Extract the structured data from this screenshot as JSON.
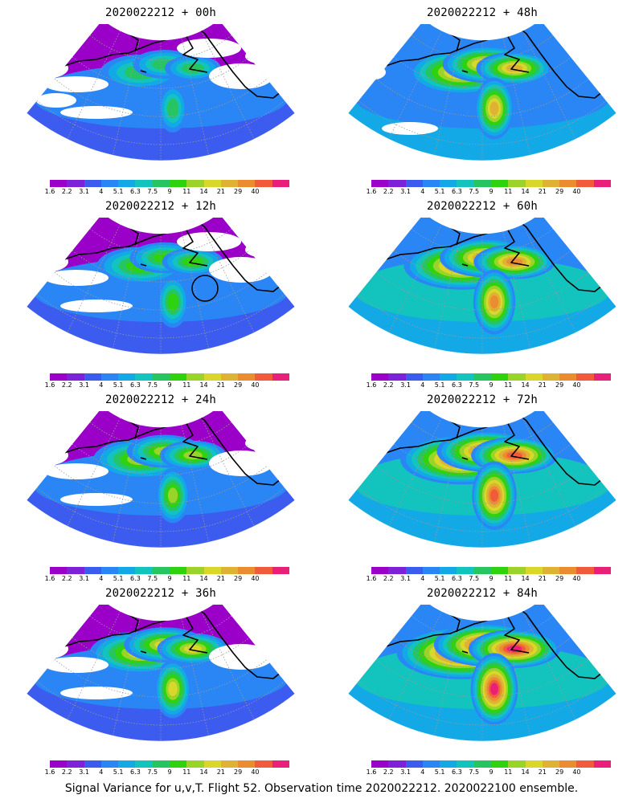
{
  "panels": [
    {
      "title": "2020022212 + 00h",
      "level": 0,
      "circle": false
    },
    {
      "title": "2020022212 + 48h",
      "level": 4,
      "circle": false
    },
    {
      "title": "2020022212 + 12h",
      "level": 1,
      "circle": true
    },
    {
      "title": "2020022212 + 60h",
      "level": 5,
      "circle": false
    },
    {
      "title": "2020022212 + 24h",
      "level": 2,
      "circle": false
    },
    {
      "title": "2020022212 + 72h",
      "level": 6,
      "circle": false
    },
    {
      "title": "2020022212 + 36h",
      "level": 3,
      "circle": false
    },
    {
      "title": "2020022212 + 84h",
      "level": 7,
      "circle": false
    }
  ],
  "colorbar": {
    "labels": [
      "1.6",
      "2.2",
      "3.1",
      "4",
      "5.1",
      "6.3",
      "7.5",
      "9",
      "11",
      "14",
      "21",
      "29",
      "40"
    ],
    "colors": [
      "#9b00c8",
      "#7d22d8",
      "#3c5cf0",
      "#2a86f5",
      "#13a9e6",
      "#13c3be",
      "#27c462",
      "#2ed20d",
      "#9ad42b",
      "#d8d72a",
      "#e0b233",
      "#eb8c31",
      "#f15a3a",
      "#ea1f79"
    ]
  },
  "footer": "Signal Variance for u,v,T. Flight 52. Observation time 2020022212. 2020022100 ensemble."
}
